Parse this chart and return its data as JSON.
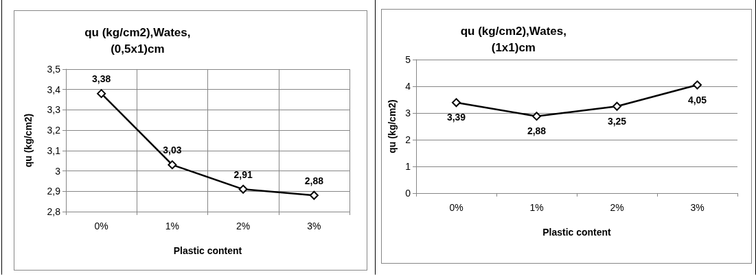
{
  "chart_data": [
    {
      "type": "line",
      "title": "qu (kg/cm2),Wates, (0,5x1)cm",
      "xlabel": "Plastic content",
      "ylabel": "qu (kg/cm2)",
      "categories": [
        "0%",
        "1%",
        "2%",
        "3%"
      ],
      "series": [
        {
          "color": "#000000",
          "values": [
            3.38,
            3.03,
            2.91,
            2.88
          ],
          "value_labels": [
            "3,38",
            "3,03",
            "2,91",
            "2,88"
          ]
        }
      ],
      "ylim": [
        2.8,
        3.5
      ],
      "yticks": [
        {
          "value": 2.8,
          "label": "2,8"
        },
        {
          "value": 2.9,
          "label": "2,9"
        },
        {
          "value": 3,
          "label": "3"
        },
        {
          "value": 3.1,
          "label": "3,1"
        },
        {
          "value": 3.2,
          "label": "3,2"
        },
        {
          "value": 3.3,
          "label": "3,3"
        },
        {
          "value": 3.4,
          "label": "3,4"
        },
        {
          "value": 3.5,
          "label": "3,5"
        }
      ],
      "grid": true,
      "marker": "diamond",
      "line_style": "solid"
    },
    {
      "type": "line",
      "title": "qu (kg/cm2),Wates, (1x1)cm",
      "xlabel": "Plastic content",
      "ylabel": "qu (kg/cm2)",
      "categories": [
        "0%",
        "1%",
        "2%",
        "3%"
      ],
      "series": [
        {
          "color": "#000000",
          "values": [
            3.39,
            2.88,
            3.25,
            4.05
          ],
          "value_labels": [
            "3,39",
            "2,88",
            "3,25",
            "4,05"
          ]
        }
      ],
      "ylim": [
        0,
        5
      ],
      "yticks": [
        0,
        1,
        2,
        3,
        4,
        5
      ],
      "grid": "y",
      "marker": "diamond",
      "line_style": "solid"
    }
  ]
}
